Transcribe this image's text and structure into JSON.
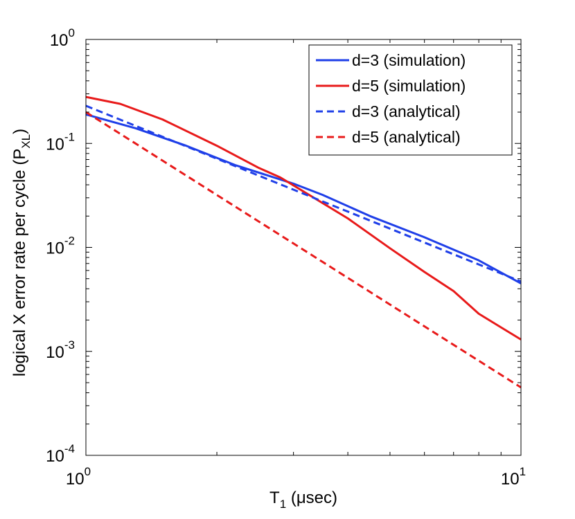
{
  "chart_data": {
    "type": "line",
    "xscale": "log",
    "yscale": "log",
    "xlim": [
      1,
      10
    ],
    "ylim": [
      0.0001,
      1
    ],
    "xticks": [
      {
        "value": 1,
        "base": "10",
        "exp": "0"
      },
      {
        "value": 10,
        "base": "10",
        "exp": "1"
      }
    ],
    "yticks": [
      {
        "value": 1,
        "base": "10",
        "exp": "0"
      },
      {
        "value": 0.1,
        "base": "10",
        "exp": "-1"
      },
      {
        "value": 0.01,
        "base": "10",
        "exp": "-2"
      },
      {
        "value": 0.001,
        "base": "10",
        "exp": "-3"
      },
      {
        "value": 0.0001,
        "base": "10",
        "exp": "-4"
      }
    ],
    "xlabel": {
      "main": "T",
      "sub": "1",
      "rest": " (μsec)"
    },
    "ylabel": {
      "main": "logical X error rate per cycle (P",
      "sub": "XL",
      "rest": ")"
    },
    "grid": false,
    "legend_position": "top-right",
    "series": [
      {
        "name": "d=3 (simulation)",
        "color": "#1f3fe8",
        "dash": "solid",
        "points": [
          [
            1,
            0.19
          ],
          [
            1.3,
            0.14
          ],
          [
            1.7,
            0.095
          ],
          [
            2.2,
            0.062
          ],
          [
            3.0,
            0.041
          ],
          [
            3.5,
            0.032
          ],
          [
            4.5,
            0.02
          ],
          [
            6.0,
            0.0125
          ],
          [
            8.0,
            0.0075
          ],
          [
            10,
            0.0045
          ]
        ]
      },
      {
        "name": "d=5 (simulation)",
        "color": "#e81a1a",
        "dash": "solid",
        "points": [
          [
            1,
            0.28
          ],
          [
            1.2,
            0.24
          ],
          [
            1.5,
            0.17
          ],
          [
            2.0,
            0.095
          ],
          [
            2.5,
            0.058
          ],
          [
            2.8,
            0.047
          ],
          [
            3.3,
            0.031
          ],
          [
            4.0,
            0.019
          ],
          [
            5.0,
            0.0098
          ],
          [
            6.0,
            0.0058
          ],
          [
            7.0,
            0.0038
          ],
          [
            8.0,
            0.0023
          ],
          [
            9.0,
            0.0017
          ],
          [
            10,
            0.0013
          ]
        ]
      },
      {
        "name": "d=3 (analytical)",
        "color": "#1f3fe8",
        "dash": "dashed",
        "points": [
          [
            1,
            0.23
          ],
          [
            10,
            0.0047
          ]
        ]
      },
      {
        "name": "d=5 (analytical)",
        "color": "#e81a1a",
        "dash": "dashed",
        "points": [
          [
            1,
            0.2
          ],
          [
            10,
            0.00045
          ]
        ]
      }
    ]
  }
}
